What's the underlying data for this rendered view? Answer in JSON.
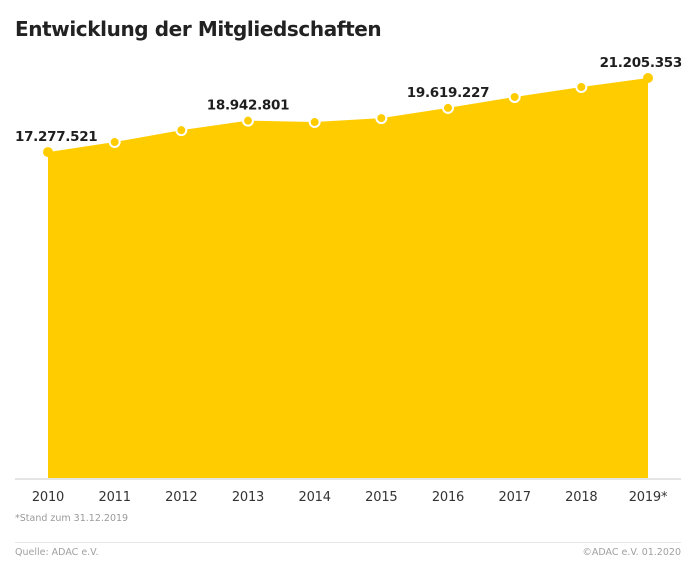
{
  "chart_data": {
    "type": "area",
    "title": "Entwicklung der Mitgliedschaften",
    "xlabel": "",
    "ylabel": "",
    "categories": [
      "2010",
      "2011",
      "2012",
      "2013",
      "2014",
      "2015",
      "2016",
      "2017",
      "2018",
      "2019*"
    ],
    "values": [
      17277521,
      17810000,
      18440000,
      18942801,
      18870000,
      19080000,
      19619227,
      20200000,
      20730000,
      21205353
    ],
    "labeled_points": [
      {
        "index": 0,
        "label": "17.277.521"
      },
      {
        "index": 3,
        "label": "18.942.801"
      },
      {
        "index": 6,
        "label": "19.619.227"
      },
      {
        "index": 9,
        "label": "21.205.353"
      }
    ],
    "ylim": [
      0,
      21205353
    ],
    "grid": false,
    "legend": "none",
    "colors": {
      "fill": "#ffcc00",
      "marker": "#ffcc00",
      "marker_ring": "#ffffff",
      "axis": "#c8c8c8"
    }
  },
  "footnote": "*Stand zum 31.12.2019",
  "source": "Quelle: ADAC e.V.",
  "copyright": "©ADAC e.V.  01.2020"
}
